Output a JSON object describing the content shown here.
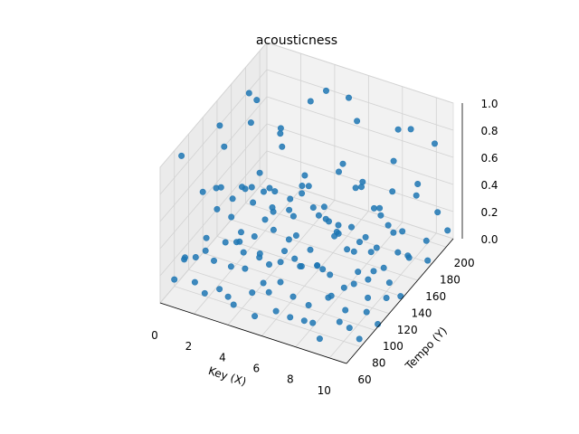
{
  "chart_data": {
    "type": "scatter",
    "projection": "3d",
    "title": "acousticness",
    "xlabel": "Key (X)",
    "ylabel": "Tempo (Y)",
    "zlabel": "",
    "xlim": [
      0,
      11
    ],
    "ylim": [
      60,
      210
    ],
    "zlim": [
      0,
      1
    ],
    "x_ticks": [
      0,
      2,
      4,
      6,
      8,
      10
    ],
    "y_ticks": [
      60,
      80,
      100,
      120,
      140,
      160,
      180,
      200
    ],
    "z_ticks": [
      0.0,
      0.2,
      0.4,
      0.6,
      0.8,
      1.0
    ],
    "x_tick_labels": [
      "0",
      "2",
      "4",
      "6",
      "8",
      "10"
    ],
    "y_tick_labels": [
      "60",
      "80",
      "100",
      "120",
      "140",
      "160",
      "180",
      "200"
    ],
    "z_tick_labels": [
      "0.0",
      "0.2",
      "0.4",
      "0.6",
      "0.8",
      "1.0"
    ],
    "grid": true,
    "marker_color": "#1f77b4",
    "pane_color": "#f2f2f2",
    "series": [
      {
        "points": [
          [
            0,
            80,
            0.05
          ],
          [
            0,
            95,
            0.12
          ],
          [
            0,
            110,
            0.03
          ],
          [
            0,
            120,
            0.45
          ],
          [
            0,
            125,
            0.08
          ],
          [
            0,
            140,
            0.2
          ],
          [
            0,
            150,
            0.6
          ],
          [
            0,
            160,
            0.02
          ],
          [
            0,
            175,
            0.15
          ],
          [
            0,
            185,
            0.78
          ],
          [
            0,
            200,
            0.1
          ],
          [
            0,
            90,
            0.9
          ],
          [
            1,
            70,
            0.3
          ],
          [
            1,
            85,
            0.04
          ],
          [
            1,
            100,
            0.18
          ],
          [
            1,
            115,
            0.55
          ],
          [
            1,
            128,
            0.07
          ],
          [
            1,
            138,
            0.33
          ],
          [
            1,
            150,
            0.01
          ],
          [
            1,
            165,
            0.25
          ],
          [
            1,
            172,
            0.85
          ],
          [
            1,
            190,
            0.09
          ],
          [
            1,
            205,
            0.4
          ],
          [
            1,
            120,
            0.98
          ],
          [
            2,
            75,
            0.06
          ],
          [
            2,
            88,
            0.22
          ],
          [
            2,
            98,
            0.7
          ],
          [
            2,
            112,
            0.03
          ],
          [
            2,
            124,
            0.14
          ],
          [
            2,
            132,
            0.48
          ],
          [
            2,
            145,
            0.05
          ],
          [
            2,
            158,
            0.3
          ],
          [
            2,
            170,
            0.11
          ],
          [
            2,
            182,
            0.62
          ],
          [
            2,
            195,
            0.02
          ],
          [
            2,
            140,
            0.92
          ],
          [
            3,
            72,
            0.15
          ],
          [
            3,
            84,
            0.02
          ],
          [
            3,
            96,
            0.35
          ],
          [
            3,
            108,
            0.08
          ],
          [
            3,
            119,
            0.5
          ],
          [
            3,
            128,
            0.04
          ],
          [
            3,
            136,
            0.27
          ],
          [
            3,
            148,
            0.12
          ],
          [
            3,
            160,
            0.66
          ],
          [
            3,
            176,
            0.05
          ],
          [
            3,
            188,
            0.2
          ],
          [
            3,
            200,
            0.75
          ],
          [
            4,
            68,
            0.1
          ],
          [
            4,
            82,
            0.4
          ],
          [
            4,
            94,
            0.03
          ],
          [
            4,
            105,
            0.25
          ],
          [
            4,
            118,
            0.09
          ],
          [
            4,
            126,
            0.58
          ],
          [
            4,
            134,
            0.01
          ],
          [
            4,
            146,
            0.32
          ],
          [
            4,
            156,
            0.07
          ],
          [
            4,
            168,
            0.44
          ],
          [
            4,
            180,
            0.13
          ],
          [
            4,
            198,
            0.88
          ],
          [
            5,
            74,
            0.02
          ],
          [
            5,
            86,
            0.19
          ],
          [
            5,
            100,
            0.63
          ],
          [
            5,
            110,
            0.05
          ],
          [
            5,
            122,
            0.29
          ],
          [
            5,
            130,
            0.1
          ],
          [
            5,
            140,
            0.52
          ],
          [
            5,
            152,
            0.03
          ],
          [
            5,
            164,
            0.21
          ],
          [
            5,
            178,
            0.08
          ],
          [
            5,
            192,
            0.36
          ],
          [
            5,
            206,
            0.82
          ],
          [
            6,
            70,
            0.26
          ],
          [
            6,
            80,
            0.06
          ],
          [
            6,
            92,
            0.43
          ],
          [
            6,
            104,
            0.02
          ],
          [
            6,
            116,
            0.17
          ],
          [
            6,
            126,
            0.7
          ],
          [
            6,
            138,
            0.04
          ],
          [
            6,
            150,
            0.31
          ],
          [
            6,
            162,
            0.11
          ],
          [
            6,
            174,
            0.57
          ],
          [
            6,
            186,
            0.03
          ],
          [
            6,
            200,
            0.24
          ],
          [
            7,
            76,
            0.08
          ],
          [
            7,
            90,
            0.37
          ],
          [
            7,
            102,
            0.01
          ],
          [
            7,
            114,
            0.23
          ],
          [
            7,
            124,
            0.6
          ],
          [
            7,
            132,
            0.05
          ],
          [
            7,
            144,
            0.28
          ],
          [
            7,
            156,
            0.09
          ],
          [
            7,
            168,
            0.47
          ],
          [
            7,
            182,
            0.02
          ],
          [
            7,
            194,
            0.16
          ],
          [
            7,
            170,
            0.95
          ],
          [
            8,
            72,
            0.12
          ],
          [
            8,
            84,
            0.03
          ],
          [
            8,
            98,
            0.34
          ],
          [
            8,
            110,
            0.07
          ],
          [
            8,
            120,
            0.53
          ],
          [
            8,
            128,
            0.02
          ],
          [
            8,
            142,
            0.2
          ],
          [
            8,
            154,
            0.64
          ],
          [
            8,
            166,
            0.05
          ],
          [
            8,
            178,
            0.3
          ],
          [
            8,
            190,
            0.1
          ],
          [
            8,
            204,
            0.72
          ],
          [
            9,
            70,
            0.04
          ],
          [
            9,
            82,
            0.27
          ],
          [
            9,
            94,
            0.68
          ],
          [
            9,
            106,
            0.03
          ],
          [
            9,
            118,
            0.15
          ],
          [
            9,
            126,
            0.41
          ],
          [
            9,
            138,
            0.06
          ],
          [
            9,
            150,
            0.22
          ],
          [
            9,
            160,
            0.01
          ],
          [
            9,
            172,
            0.5
          ],
          [
            9,
            186,
            0.12
          ],
          [
            9,
            198,
            0.8
          ],
          [
            10,
            74,
            0.18
          ],
          [
            10,
            88,
            0.05
          ],
          [
            10,
            100,
            0.39
          ],
          [
            10,
            112,
            0.02
          ],
          [
            10,
            122,
            0.26
          ],
          [
            10,
            132,
            0.61
          ],
          [
            10,
            144,
            0.04
          ],
          [
            10,
            156,
            0.19
          ],
          [
            10,
            170,
            0.08
          ],
          [
            10,
            182,
            0.45
          ],
          [
            10,
            196,
            0.03
          ],
          [
            10,
            150,
            0.9
          ],
          [
            11,
            78,
            0.07
          ],
          [
            11,
            90,
            0.3
          ],
          [
            11,
            104,
            0.02
          ],
          [
            11,
            116,
            0.14
          ],
          [
            11,
            126,
            0.56
          ],
          [
            11,
            136,
            0.03
          ],
          [
            11,
            148,
            0.24
          ],
          [
            11,
            160,
            0.71
          ],
          [
            11,
            174,
            0.06
          ],
          [
            11,
            188,
            0.33
          ],
          [
            11,
            202,
            0.11
          ],
          [
            11,
            184,
            0.86
          ]
        ]
      }
    ]
  }
}
